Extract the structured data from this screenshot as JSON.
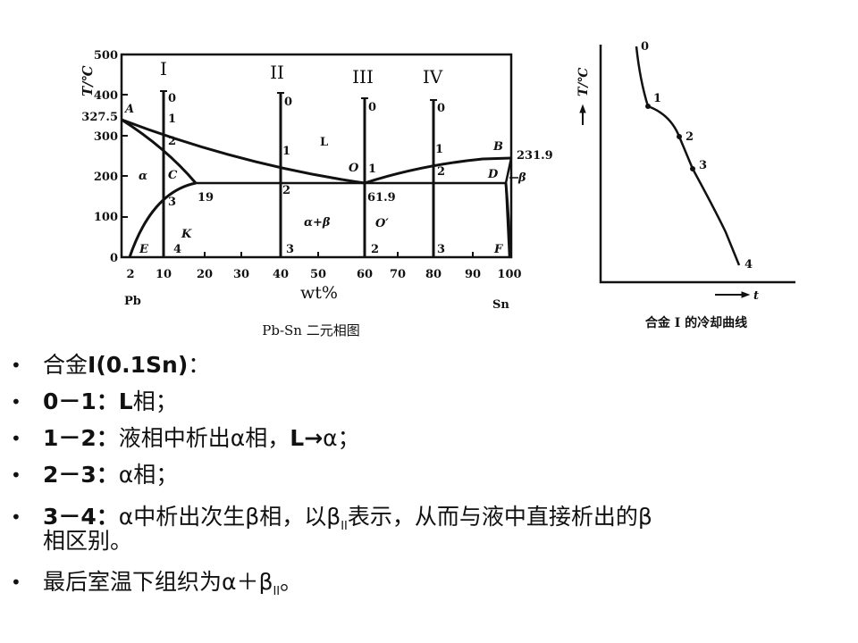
{
  "phase_diagram": {
    "y_axis_label": "T/℃",
    "y_ticks": [
      "500",
      "400",
      "327.5",
      "300",
      "200",
      "100",
      "0"
    ],
    "x_ticks": [
      "2",
      "10",
      "20",
      "30",
      "40",
      "50",
      "60",
      "70",
      "80",
      "90",
      "100"
    ],
    "x_axis_label": "wt%",
    "left_element": "Pb",
    "right_element": "Sn",
    "caption": "Pb-Sn 二元相图",
    "alloys": [
      "I",
      "II",
      "III",
      "IV"
    ],
    "point_labels": {
      "A": "A",
      "B": "B",
      "C": "C",
      "D": "D",
      "E": "E",
      "F": "F",
      "O": "O",
      "O_prime": "O′",
      "K": "K"
    },
    "region_labels": {
      "liquid": "L",
      "alpha": "α",
      "alpha_beta": "α+β",
      "beta": "β"
    },
    "values": {
      "tb": "231.9",
      "eutectic_comp": "61.9",
      "alpha_max": "19"
    },
    "stage_numbers": {
      "I": [
        "0",
        "1",
        "2",
        "3",
        "4"
      ],
      "II": [
        "0",
        "1",
        "2",
        "3"
      ],
      "III": [
        "0",
        "1",
        "2"
      ],
      "IV": [
        "0",
        "1",
        "2",
        "3"
      ]
    }
  },
  "cooling_curve": {
    "y_axis_label": "T/℃",
    "x_axis_label": "t",
    "points": [
      "0",
      "1",
      "2",
      "3",
      "4"
    ],
    "caption": "合金 I 的冷却曲线"
  },
  "bullets": [
    [
      {
        "t": "合金"
      },
      {
        "t": "I(0.1Sn)",
        "b": true
      },
      {
        "t": "："
      }
    ],
    [
      {
        "t": "0－1：",
        "b": true
      },
      {
        "t": "L",
        "b": true
      },
      {
        "t": "相；"
      }
    ],
    [
      {
        "t": "1－2：",
        "b": true
      },
      {
        "t": "液相中析出α相，"
      },
      {
        "t": "L→",
        "b": true
      },
      {
        "t": "α；"
      }
    ],
    [
      {
        "t": "2－3：",
        "b": true
      },
      {
        "t": "α相；"
      }
    ],
    [
      {
        "t": " 3－4：",
        "b": true
      },
      {
        "t": "α中析出次生β相，以β"
      },
      {
        "t": "II",
        "sub": true
      },
      {
        "t": "表示，从而与液中直接析出的β"
      }
    ],
    [
      {
        "t": "相区别。"
      }
    ],
    [
      {
        "t": "最后室温下组织为α＋β"
      },
      {
        "t": "II",
        "sub": true
      },
      {
        "t": "。"
      }
    ]
  ]
}
